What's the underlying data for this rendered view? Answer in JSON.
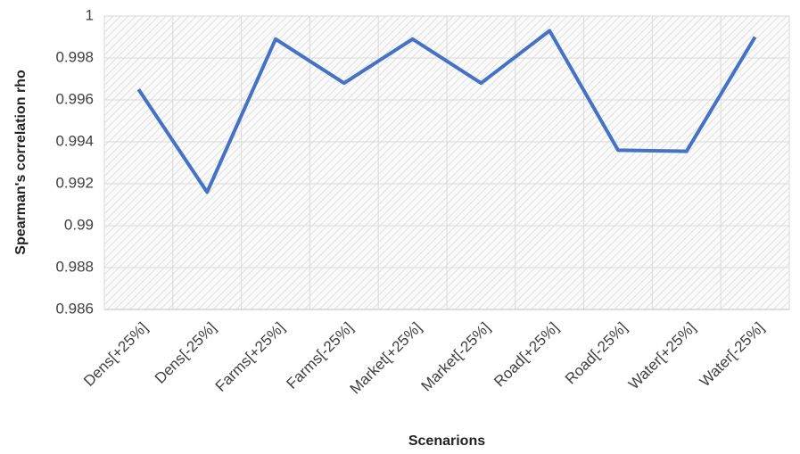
{
  "chart_data": {
    "type": "line",
    "x_label": "Scenarions",
    "y_label": "Spearman's correlation rho",
    "categories": [
      "Dens[+25%]",
      "Dens[-25%]",
      "Farms[+25%]",
      "Farms[-25%]",
      "Market[+25%]",
      "Market[-25%]",
      "Road[+25%]",
      "Road[-25%]",
      "Water[+25%]",
      "Water[-25%]"
    ],
    "series": [
      {
        "name": "Spearman's correlation rho",
        "color": "#4472c4",
        "values": [
          0.9965,
          0.9916,
          0.9989,
          0.9968,
          0.9989,
          0.9968,
          0.9993,
          0.9936,
          0.99355,
          0.999
        ]
      }
    ],
    "ylim": [
      0.986,
      1
    ],
    "yticks": [
      0.986,
      0.988,
      0.99,
      0.992,
      0.994,
      0.996,
      0.998,
      1
    ],
    "grid": true
  }
}
